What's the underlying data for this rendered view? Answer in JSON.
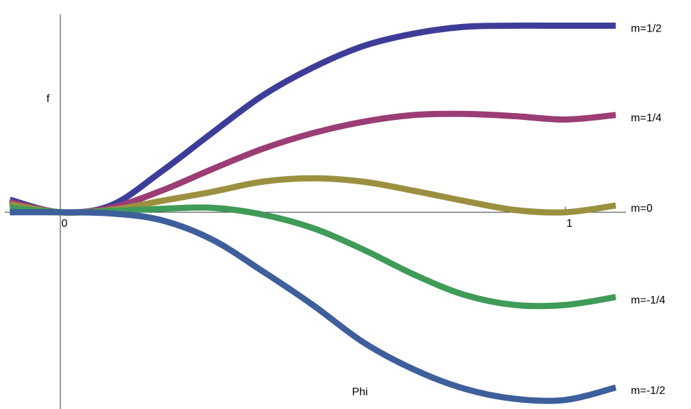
{
  "chart_data": {
    "type": "line",
    "x_label": "Phi",
    "y_label": "f",
    "x": [
      -0.1,
      0,
      0.1,
      0.2,
      0.3,
      0.4,
      0.5,
      0.6,
      0.7,
      0.8,
      0.9,
      1.0,
      1.1
    ],
    "series": [
      {
        "name": "m=1/2",
        "color": "#3d3d99",
        "values": [
          0.11,
          0,
          0.06,
          0.36,
          0.7,
          1.03,
          1.28,
          1.47,
          1.58,
          1.64,
          1.65,
          1.65,
          1.65
        ]
      },
      {
        "name": "m=1/4",
        "color": "#9b3d74",
        "values": [
          0.09,
          0,
          0.04,
          0.19,
          0.38,
          0.56,
          0.7,
          0.8,
          0.86,
          0.87,
          0.85,
          0.82,
          0.86
        ]
      },
      {
        "name": "m=0",
        "color": "#9b9040",
        "values": [
          0.07,
          0,
          0.02,
          0.1,
          0.18,
          0.27,
          0.3,
          0.27,
          0.19,
          0.1,
          0.02,
          0,
          0.06
        ]
      },
      {
        "name": "m=-1/4",
        "color": "#3f9b57",
        "values": [
          0.04,
          0,
          0.01,
          0.03,
          0.04,
          -0.02,
          -0.14,
          -0.33,
          -0.55,
          -0.73,
          -0.82,
          -0.82,
          -0.75
        ]
      },
      {
        "name": "m=-1/2",
        "color": "#3d5f9b",
        "values": [
          0,
          0,
          -0.01,
          -0.07,
          -0.24,
          -0.52,
          -0.82,
          -1.15,
          -1.39,
          -1.56,
          -1.65,
          -1.66,
          -1.55
        ]
      }
    ],
    "xlim": [
      -0.11,
      1.12
    ],
    "ylim": [
      -1.74,
      1.75
    ],
    "xticks": [
      0,
      1
    ]
  }
}
